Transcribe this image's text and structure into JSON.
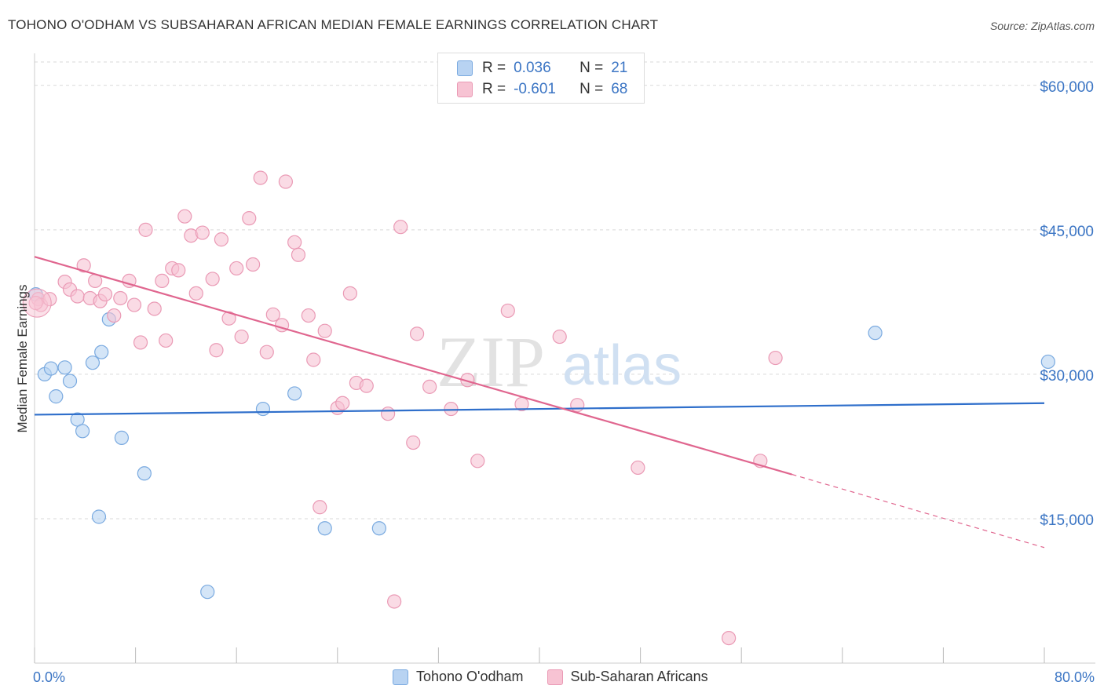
{
  "title": "TOHONO O'ODHAM VS SUBSAHARAN AFRICAN MEDIAN FEMALE EARNINGS CORRELATION CHART",
  "source": "Source: ZipAtlas.com",
  "watermark": {
    "zip": "ZIP",
    "atlas": "atlas"
  },
  "colors": {
    "blue_fill": "#b8d3f2",
    "blue_stroke": "#7aaae0",
    "blue_line": "#2f6fcb",
    "pink_fill": "#f7c3d3",
    "pink_stroke": "#ea9ab5",
    "pink_line": "#e0668f",
    "axis_text": "#3b75c4",
    "grid": "#d9d9d9"
  },
  "legend": {
    "rows": [
      {
        "r_label": "R =",
        "r_value": "0.036",
        "n_label": "N =",
        "n_value": "21"
      },
      {
        "r_label": "R =",
        "r_value": "-0.601",
        "n_label": "N =",
        "n_value": "68"
      }
    ],
    "series_names": [
      "Tohono O'odham",
      "Sub-Saharan Africans"
    ]
  },
  "chart_data": {
    "type": "scatter",
    "title": "TOHONO O'ODHAM VS SUBSAHARAN AFRICAN MEDIAN FEMALE EARNINGS CORRELATION CHART",
    "xlabel": "",
    "ylabel": "Median Female Earnings",
    "xlim": [
      0,
      80
    ],
    "ylim": [
      0,
      63000
    ],
    "x_tick_labels": {
      "left": "0.0%",
      "right": "80.0%"
    },
    "y_ticks": [
      {
        "value": 15000,
        "label": "$15,000"
      },
      {
        "value": 30000,
        "label": "$30,000"
      },
      {
        "value": 45000,
        "label": "$45,000"
      },
      {
        "value": 60000,
        "label": "$60,000"
      }
    ],
    "grid": true,
    "series": [
      {
        "name": "Tohono O'odham",
        "color": "blue",
        "trend": {
          "x0": 0,
          "y0": 25800,
          "x1": 80,
          "y1": 27000
        },
        "points": [
          [
            0.1,
            38300
          ],
          [
            0.8,
            30000
          ],
          [
            1.3,
            30600
          ],
          [
            1.7,
            27700
          ],
          [
            2.4,
            30700
          ],
          [
            2.8,
            29300
          ],
          [
            3.4,
            25300
          ],
          [
            3.8,
            24100
          ],
          [
            4.6,
            31200
          ],
          [
            5.3,
            32300
          ],
          [
            5.9,
            35700
          ],
          [
            6.9,
            23400
          ],
          [
            8.7,
            19700
          ],
          [
            5.1,
            15200
          ],
          [
            13.7,
            7400
          ],
          [
            18.1,
            26400
          ],
          [
            20.6,
            28000
          ],
          [
            23.0,
            14000
          ],
          [
            27.3,
            14000
          ],
          [
            66.6,
            34300
          ],
          [
            80.3,
            31300
          ]
        ]
      },
      {
        "name": "Sub-Saharan Africans",
        "color": "pink",
        "trend": {
          "x0": 0,
          "y0": 42200,
          "x1": 60,
          "y1": 19600
        },
        "trend_dashed": {
          "x0": 60,
          "y0": 19600,
          "x1": 80,
          "y1": 12000
        },
        "points": [
          [
            0.3,
            37800
          ],
          [
            0.5,
            37200
          ],
          [
            1.2,
            37800
          ],
          [
            2.4,
            39600
          ],
          [
            2.8,
            38800
          ],
          [
            3.4,
            38100
          ],
          [
            3.9,
            41300
          ],
          [
            4.4,
            37900
          ],
          [
            4.8,
            39700
          ],
          [
            5.2,
            37600
          ],
          [
            5.6,
            38300
          ],
          [
            6.3,
            36100
          ],
          [
            6.8,
            37900
          ],
          [
            7.5,
            39700
          ],
          [
            7.9,
            37200
          ],
          [
            8.4,
            33300
          ],
          [
            8.8,
            45000
          ],
          [
            9.5,
            36800
          ],
          [
            10.1,
            39700
          ],
          [
            10.4,
            33500
          ],
          [
            10.9,
            41000
          ],
          [
            11.4,
            40800
          ],
          [
            11.9,
            46400
          ],
          [
            12.4,
            44400
          ],
          [
            12.8,
            38400
          ],
          [
            13.3,
            44700
          ],
          [
            14.1,
            39900
          ],
          [
            14.4,
            32500
          ],
          [
            14.8,
            44000
          ],
          [
            15.4,
            35800
          ],
          [
            16.0,
            41000
          ],
          [
            16.4,
            33900
          ],
          [
            17.0,
            46200
          ],
          [
            17.3,
            41400
          ],
          [
            17.9,
            50400
          ],
          [
            18.4,
            32300
          ],
          [
            18.9,
            36200
          ],
          [
            19.6,
            35100
          ],
          [
            19.9,
            50000
          ],
          [
            20.6,
            43700
          ],
          [
            20.9,
            42400
          ],
          [
            21.7,
            36100
          ],
          [
            22.1,
            31500
          ],
          [
            22.6,
            16200
          ],
          [
            23.0,
            34500
          ],
          [
            24.0,
            26500
          ],
          [
            24.4,
            27000
          ],
          [
            25.0,
            38400
          ],
          [
            25.5,
            29100
          ],
          [
            26.3,
            28800
          ],
          [
            28.0,
            25900
          ],
          [
            29.0,
            45300
          ],
          [
            30.0,
            22900
          ],
          [
            30.3,
            34200
          ],
          [
            31.3,
            28700
          ],
          [
            33.0,
            26400
          ],
          [
            34.3,
            29400
          ],
          [
            35.1,
            21000
          ],
          [
            37.5,
            36600
          ],
          [
            38.6,
            26900
          ],
          [
            41.6,
            33900
          ],
          [
            43.0,
            26800
          ],
          [
            47.8,
            20300
          ],
          [
            55.0,
            2600
          ],
          [
            57.5,
            21000
          ],
          [
            58.7,
            31700
          ],
          [
            28.5,
            6400
          ],
          [
            0.1,
            37400
          ]
        ]
      }
    ]
  }
}
